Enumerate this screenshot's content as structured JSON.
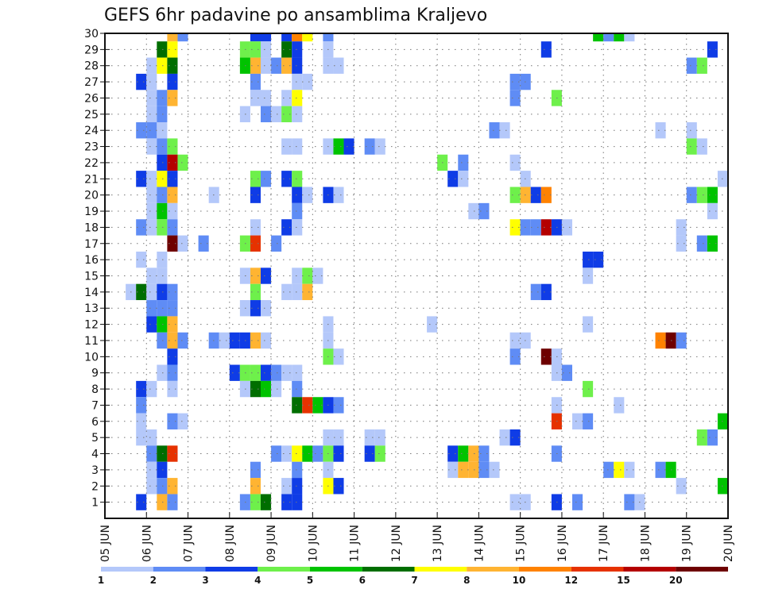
{
  "chart_data": {
    "type": "heatmap",
    "title": "GEFS 6hr padavine po ansamblima Kraljevo",
    "xlabel": "",
    "ylabel": "",
    "x_tick_labels": [
      "05 JUN",
      "06 JUN",
      "07 JUN",
      "08 JUN",
      "09 JUN",
      "10 JUN",
      "11 JUN",
      "12 JUN",
      "13 JUN",
      "14 JUN",
      "15 JUN",
      "16 JUN",
      "17 JUN",
      "18 JUN",
      "19 JUN",
      "20 JUN"
    ],
    "x_steps": 60,
    "x_step_hours": 6,
    "y_tick_labels": [
      "1",
      "2",
      "3",
      "4",
      "5",
      "6",
      "7",
      "8",
      "9",
      "10",
      "11",
      "12",
      "13",
      "14",
      "15",
      "16",
      "17",
      "18",
      "19",
      "20",
      "21",
      "22",
      "23",
      "24",
      "25",
      "26",
      "27",
      "28",
      "29",
      "30"
    ],
    "ylim": [
      0,
      30
    ],
    "grid": true,
    "legend_position": "bottom",
    "colorbar": {
      "labels": [
        "1",
        "2",
        "3",
        "4",
        "5",
        "6",
        "7",
        "8",
        "10",
        "12",
        "15",
        "20"
      ],
      "levels": [
        1,
        2,
        3,
        4,
        5,
        6,
        7,
        8,
        10,
        12,
        15,
        20
      ],
      "colors": [
        "#b4c8fa",
        "#5f8cf5",
        "#0f3ce6",
        "#6ef04b",
        "#00c300",
        "#006e00",
        "#ffff00",
        "#ffb432",
        "#ff8200",
        "#e63200",
        "#b40000",
        "#6e0000"
      ]
    },
    "cells_note": "each cell: [member(row), 6h step index from 05 JUN 00, precipitation class level]",
    "cells": [
      [
        30,
        6,
        8
      ],
      [
        30,
        7,
        2
      ],
      [
        30,
        14,
        3
      ],
      [
        30,
        15,
        3
      ],
      [
        30,
        17,
        3
      ],
      [
        30,
        18,
        10
      ],
      [
        30,
        19,
        7
      ],
      [
        30,
        21,
        2
      ],
      [
        30,
        47,
        5
      ],
      [
        30,
        48,
        2
      ],
      [
        30,
        49,
        5
      ],
      [
        30,
        50,
        1
      ],
      [
        29,
        5,
        6
      ],
      [
        29,
        6,
        7
      ],
      [
        29,
        13,
        4
      ],
      [
        29,
        14,
        4
      ],
      [
        29,
        15,
        1
      ],
      [
        29,
        17,
        6
      ],
      [
        29,
        18,
        3
      ],
      [
        29,
        21,
        1
      ],
      [
        29,
        42,
        3
      ],
      [
        29,
        58,
        3
      ],
      [
        28,
        4,
        1
      ],
      [
        28,
        5,
        7
      ],
      [
        28,
        6,
        6
      ],
      [
        28,
        13,
        5
      ],
      [
        28,
        14,
        8
      ],
      [
        28,
        15,
        1
      ],
      [
        28,
        16,
        2
      ],
      [
        28,
        17,
        8
      ],
      [
        28,
        18,
        3
      ],
      [
        28,
        21,
        1
      ],
      [
        28,
        22,
        1
      ],
      [
        28,
        56,
        2
      ],
      [
        28,
        57,
        4
      ],
      [
        27,
        3,
        3
      ],
      [
        27,
        4,
        1
      ],
      [
        27,
        6,
        3
      ],
      [
        27,
        14,
        2
      ],
      [
        27,
        18,
        1
      ],
      [
        27,
        19,
        1
      ],
      [
        27,
        39,
        2
      ],
      [
        27,
        40,
        2
      ],
      [
        26,
        4,
        1
      ],
      [
        26,
        5,
        2
      ],
      [
        26,
        6,
        8
      ],
      [
        26,
        14,
        1
      ],
      [
        26,
        15,
        1
      ],
      [
        26,
        17,
        1
      ],
      [
        26,
        18,
        7
      ],
      [
        26,
        39,
        2
      ],
      [
        26,
        43,
        4
      ],
      [
        25,
        4,
        1
      ],
      [
        25,
        5,
        2
      ],
      [
        25,
        13,
        1
      ],
      [
        25,
        15,
        2
      ],
      [
        25,
        16,
        1
      ],
      [
        25,
        17,
        4
      ],
      [
        25,
        18,
        1
      ],
      [
        24,
        3,
        2
      ],
      [
        24,
        4,
        2
      ],
      [
        24,
        5,
        1
      ],
      [
        24,
        37,
        2
      ],
      [
        24,
        38,
        1
      ],
      [
        24,
        53,
        1
      ],
      [
        24,
        56,
        1
      ],
      [
        23,
        4,
        1
      ],
      [
        23,
        5,
        2
      ],
      [
        23,
        6,
        4
      ],
      [
        23,
        17,
        1
      ],
      [
        23,
        18,
        1
      ],
      [
        23,
        21,
        1
      ],
      [
        23,
        22,
        5
      ],
      [
        23,
        23,
        3
      ],
      [
        23,
        25,
        2
      ],
      [
        23,
        26,
        1
      ],
      [
        23,
        56,
        4
      ],
      [
        23,
        57,
        1
      ],
      [
        22,
        5,
        3
      ],
      [
        22,
        6,
        15
      ],
      [
        22,
        7,
        4
      ],
      [
        22,
        32,
        4
      ],
      [
        22,
        34,
        2
      ],
      [
        22,
        39,
        1
      ],
      [
        21,
        3,
        3
      ],
      [
        21,
        4,
        1
      ],
      [
        21,
        5,
        7
      ],
      [
        21,
        6,
        3
      ],
      [
        21,
        14,
        4
      ],
      [
        21,
        15,
        2
      ],
      [
        21,
        17,
        3
      ],
      [
        21,
        18,
        4
      ],
      [
        21,
        33,
        3
      ],
      [
        21,
        34,
        1
      ],
      [
        21,
        40,
        1
      ],
      [
        21,
        59,
        1
      ],
      [
        20,
        4,
        1
      ],
      [
        20,
        5,
        2
      ],
      [
        20,
        6,
        8
      ],
      [
        20,
        10,
        1
      ],
      [
        20,
        14,
        3
      ],
      [
        20,
        18,
        3
      ],
      [
        20,
        19,
        1
      ],
      [
        20,
        21,
        3
      ],
      [
        20,
        22,
        1
      ],
      [
        20,
        39,
        4
      ],
      [
        20,
        40,
        8
      ],
      [
        20,
        41,
        3
      ],
      [
        20,
        42,
        10
      ],
      [
        20,
        56,
        2
      ],
      [
        20,
        57,
        4
      ],
      [
        20,
        58,
        5
      ],
      [
        19,
        4,
        1
      ],
      [
        19,
        5,
        5
      ],
      [
        19,
        6,
        1
      ],
      [
        19,
        18,
        2
      ],
      [
        19,
        35,
        1
      ],
      [
        19,
        36,
        2
      ],
      [
        19,
        58,
        1
      ],
      [
        18,
        3,
        2
      ],
      [
        18,
        4,
        1
      ],
      [
        18,
        5,
        4
      ],
      [
        18,
        6,
        2
      ],
      [
        18,
        14,
        1
      ],
      [
        18,
        17,
        3
      ],
      [
        18,
        18,
        1
      ],
      [
        18,
        39,
        7
      ],
      [
        18,
        40,
        2
      ],
      [
        18,
        41,
        2
      ],
      [
        18,
        42,
        15
      ],
      [
        18,
        43,
        3
      ],
      [
        18,
        44,
        1
      ],
      [
        18,
        55,
        1
      ],
      [
        17,
        6,
        20
      ],
      [
        17,
        7,
        1
      ],
      [
        17,
        9,
        2
      ],
      [
        17,
        13,
        4
      ],
      [
        17,
        14,
        12
      ],
      [
        17,
        16,
        2
      ],
      [
        17,
        55,
        1
      ],
      [
        17,
        57,
        2
      ],
      [
        17,
        58,
        5
      ],
      [
        16,
        3,
        1
      ],
      [
        16,
        5,
        1
      ],
      [
        16,
        46,
        3
      ],
      [
        16,
        47,
        3
      ],
      [
        15,
        4,
        1
      ],
      [
        15,
        5,
        1
      ],
      [
        15,
        13,
        1
      ],
      [
        15,
        14,
        8
      ],
      [
        15,
        15,
        3
      ],
      [
        15,
        18,
        1
      ],
      [
        15,
        19,
        4
      ],
      [
        15,
        20,
        1
      ],
      [
        15,
        46,
        1
      ],
      [
        14,
        2,
        1
      ],
      [
        14,
        3,
        6
      ],
      [
        14,
        4,
        1
      ],
      [
        14,
        5,
        3
      ],
      [
        14,
        6,
        2
      ],
      [
        14,
        14,
        4
      ],
      [
        14,
        17,
        1
      ],
      [
        14,
        18,
        1
      ],
      [
        14,
        19,
        8
      ],
      [
        14,
        41,
        2
      ],
      [
        14,
        42,
        3
      ],
      [
        13,
        4,
        2
      ],
      [
        13,
        5,
        2
      ],
      [
        13,
        6,
        2
      ],
      [
        13,
        13,
        1
      ],
      [
        13,
        14,
        3
      ],
      [
        13,
        15,
        1
      ],
      [
        12,
        4,
        3
      ],
      [
        12,
        5,
        5
      ],
      [
        12,
        6,
        8
      ],
      [
        12,
        21,
        1
      ],
      [
        12,
        31,
        1
      ],
      [
        12,
        46,
        1
      ],
      [
        11,
        5,
        2
      ],
      [
        11,
        6,
        8
      ],
      [
        11,
        7,
        2
      ],
      [
        11,
        10,
        2
      ],
      [
        11,
        11,
        1
      ],
      [
        11,
        12,
        3
      ],
      [
        11,
        13,
        3
      ],
      [
        11,
        14,
        8
      ],
      [
        11,
        15,
        1
      ],
      [
        11,
        21,
        1
      ],
      [
        11,
        39,
        1
      ],
      [
        11,
        40,
        1
      ],
      [
        11,
        53,
        10
      ],
      [
        11,
        54,
        20
      ],
      [
        11,
        55,
        2
      ],
      [
        10,
        6,
        3
      ],
      [
        10,
        21,
        4
      ],
      [
        10,
        22,
        1
      ],
      [
        10,
        39,
        2
      ],
      [
        10,
        42,
        20
      ],
      [
        10,
        43,
        1
      ],
      [
        9,
        5,
        1
      ],
      [
        9,
        6,
        2
      ],
      [
        9,
        12,
        3
      ],
      [
        9,
        13,
        4
      ],
      [
        9,
        14,
        4
      ],
      [
        9,
        15,
        3
      ],
      [
        9,
        16,
        2
      ],
      [
        9,
        17,
        1
      ],
      [
        9,
        18,
        1
      ],
      [
        9,
        43,
        1
      ],
      [
        9,
        44,
        2
      ],
      [
        8,
        3,
        3
      ],
      [
        8,
        4,
        1
      ],
      [
        8,
        6,
        1
      ],
      [
        8,
        13,
        1
      ],
      [
        8,
        14,
        6
      ],
      [
        8,
        15,
        5
      ],
      [
        8,
        16,
        1
      ],
      [
        8,
        18,
        2
      ],
      [
        8,
        46,
        4
      ],
      [
        7,
        3,
        2
      ],
      [
        7,
        18,
        6
      ],
      [
        7,
        19,
        12
      ],
      [
        7,
        20,
        5
      ],
      [
        7,
        21,
        3
      ],
      [
        7,
        22,
        2
      ],
      [
        7,
        43,
        1
      ],
      [
        7,
        49,
        1
      ],
      [
        6,
        3,
        1
      ],
      [
        6,
        6,
        2
      ],
      [
        6,
        7,
        1
      ],
      [
        6,
        43,
        12
      ],
      [
        6,
        45,
        1
      ],
      [
        6,
        46,
        2
      ],
      [
        6,
        59,
        5
      ],
      [
        5,
        3,
        1
      ],
      [
        5,
        4,
        1
      ],
      [
        5,
        21,
        1
      ],
      [
        5,
        22,
        1
      ],
      [
        5,
        25,
        1
      ],
      [
        5,
        26,
        1
      ],
      [
        5,
        38,
        1
      ],
      [
        5,
        39,
        3
      ],
      [
        5,
        57,
        4
      ],
      [
        5,
        58,
        2
      ],
      [
        4,
        4,
        2
      ],
      [
        4,
        5,
        6
      ],
      [
        4,
        6,
        12
      ],
      [
        4,
        16,
        2
      ],
      [
        4,
        17,
        1
      ],
      [
        4,
        18,
        7
      ],
      [
        4,
        19,
        5
      ],
      [
        4,
        20,
        2
      ],
      [
        4,
        21,
        4
      ],
      [
        4,
        22,
        3
      ],
      [
        4,
        25,
        3
      ],
      [
        4,
        26,
        4
      ],
      [
        4,
        33,
        3
      ],
      [
        4,
        34,
        5
      ],
      [
        4,
        35,
        8
      ],
      [
        4,
        36,
        2
      ],
      [
        4,
        43,
        2
      ],
      [
        3,
        4,
        1
      ],
      [
        3,
        5,
        3
      ],
      [
        3,
        14,
        2
      ],
      [
        3,
        18,
        2
      ],
      [
        3,
        21,
        1
      ],
      [
        3,
        33,
        1
      ],
      [
        3,
        34,
        8
      ],
      [
        3,
        35,
        8
      ],
      [
        3,
        36,
        2
      ],
      [
        3,
        37,
        1
      ],
      [
        3,
        48,
        2
      ],
      [
        3,
        49,
        7
      ],
      [
        3,
        50,
        1
      ],
      [
        3,
        53,
        2
      ],
      [
        3,
        54,
        5
      ],
      [
        2,
        4,
        1
      ],
      [
        2,
        5,
        2
      ],
      [
        2,
        6,
        8
      ],
      [
        2,
        14,
        8
      ],
      [
        2,
        17,
        1
      ],
      [
        2,
        18,
        3
      ],
      [
        2,
        21,
        7
      ],
      [
        2,
        22,
        3
      ],
      [
        2,
        55,
        1
      ],
      [
        2,
        59,
        5
      ],
      [
        1,
        3,
        3
      ],
      [
        1,
        5,
        8
      ],
      [
        1,
        6,
        2
      ],
      [
        1,
        13,
        2
      ],
      [
        1,
        14,
        4
      ],
      [
        1,
        15,
        6
      ],
      [
        1,
        17,
        3
      ],
      [
        1,
        18,
        3
      ],
      [
        1,
        39,
        1
      ],
      [
        1,
        40,
        1
      ],
      [
        1,
        43,
        3
      ],
      [
        1,
        45,
        2
      ],
      [
        1,
        50,
        2
      ],
      [
        1,
        51,
        1
      ]
    ]
  }
}
